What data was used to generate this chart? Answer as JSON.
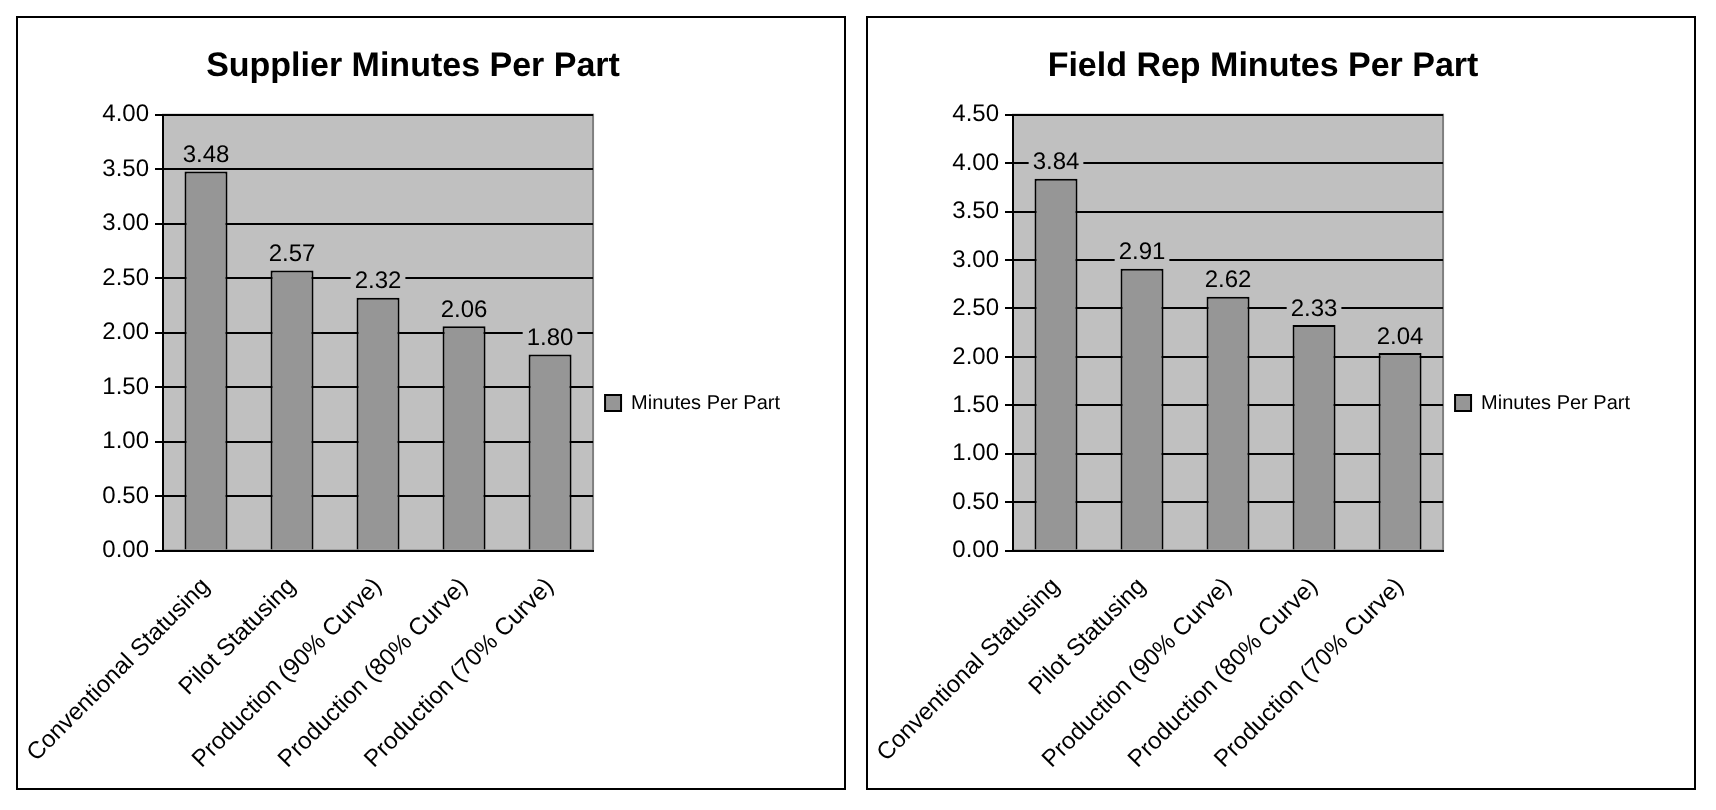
{
  "chart_data": [
    {
      "type": "bar",
      "title": "Supplier Minutes Per Part",
      "categories": [
        "Conventional Statusing",
        "Pilot Statusing",
        "Production (90% Curve)",
        "Production (80% Curve)",
        "Production (70% Curve)"
      ],
      "series": [
        {
          "name": "Minutes Per Part",
          "color": "#969696",
          "values": [
            3.48,
            2.57,
            2.32,
            2.06,
            1.8
          ],
          "value_labels": [
            "3.48",
            "2.57",
            "2.32",
            "2.06",
            "1.80"
          ]
        }
      ],
      "ylim": [
        0,
        4
      ],
      "yticks": [
        {
          "value": 0,
          "label": "0.00"
        },
        {
          "value": 0.5,
          "label": "0.50"
        },
        {
          "value": 1,
          "label": "1.00"
        },
        {
          "value": 1.5,
          "label": "1.50"
        },
        {
          "value": 2,
          "label": "2.00"
        },
        {
          "value": 2.5,
          "label": "2.50"
        },
        {
          "value": 3,
          "label": "3.00"
        },
        {
          "value": 3.5,
          "label": "3.50"
        },
        {
          "value": 4,
          "label": "4.00"
        }
      ],
      "grid": "y",
      "legend": "right"
    },
    {
      "type": "bar",
      "title": "Field Rep Minutes Per Part",
      "categories": [
        "Conventional Statusing",
        "Pilot Statusing",
        "Production (90% Curve)",
        "Production (80% Curve)",
        "Production (70% Curve)"
      ],
      "series": [
        {
          "name": "Minutes Per Part",
          "color": "#969696",
          "values": [
            3.84,
            2.91,
            2.62,
            2.33,
            2.04
          ],
          "value_labels": [
            "3.84",
            "2.91",
            "2.62",
            "2.33",
            "2.04"
          ]
        }
      ],
      "ylim": [
        0,
        4.5
      ],
      "yticks": [
        {
          "value": 0,
          "label": "0.00"
        },
        {
          "value": 0.5,
          "label": "0.50"
        },
        {
          "value": 1,
          "label": "1.00"
        },
        {
          "value": 1.5,
          "label": "1.50"
        },
        {
          "value": 2,
          "label": "2.00"
        },
        {
          "value": 2.5,
          "label": "2.50"
        },
        {
          "value": 3,
          "label": "3.00"
        },
        {
          "value": 3.5,
          "label": "3.50"
        },
        {
          "value": 4,
          "label": "4.00"
        },
        {
          "value": 4.5,
          "label": "4.50"
        }
      ],
      "grid": "y",
      "legend": "right"
    }
  ]
}
